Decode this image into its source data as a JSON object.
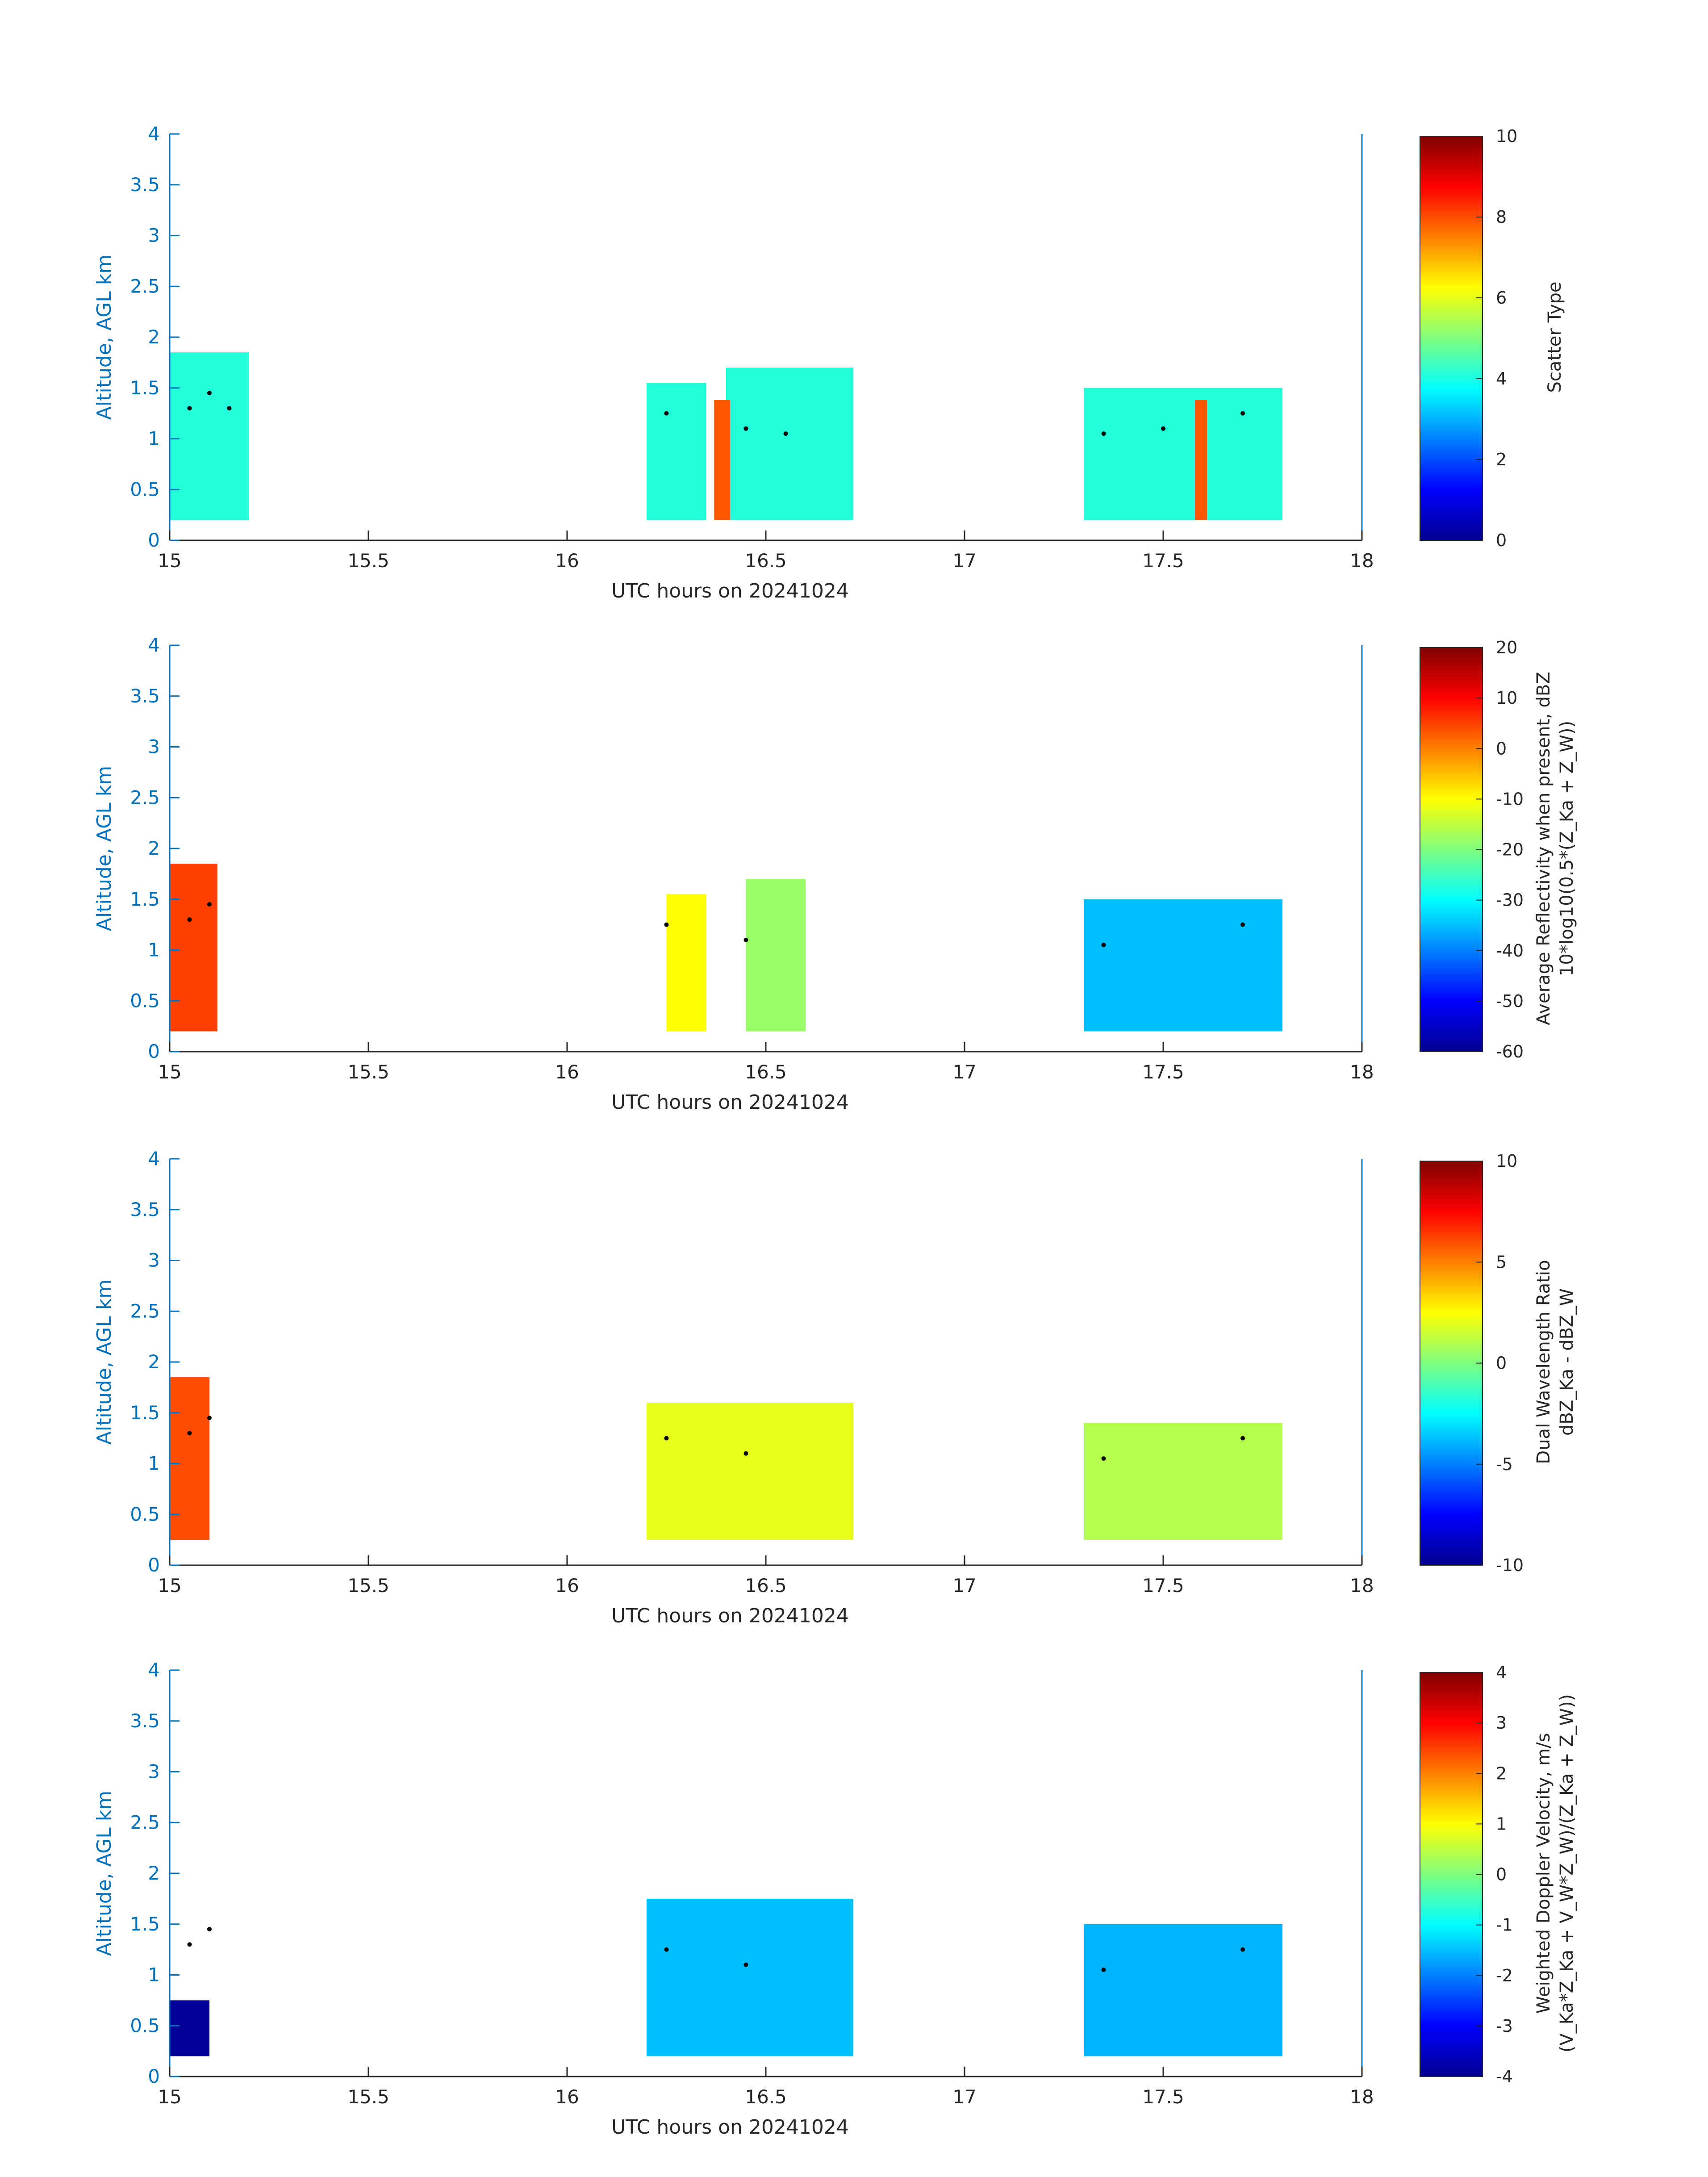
{
  "chart_data": [
    {
      "type": "heatmap",
      "xlabel": "UTC hours on 20241024",
      "ylabel": "Altitude, AGL km",
      "xlim": [
        15,
        18
      ],
      "ylim": [
        0,
        4
      ],
      "xticks": [
        "15",
        "15.5",
        "16",
        "16.5",
        "17",
        "17.5",
        "18"
      ],
      "yticks": [
        "0",
        "0.5",
        "1",
        "1.5",
        "2",
        "2.5",
        "3",
        "3.5",
        "4"
      ],
      "colorbar": {
        "label": "Scatter Type",
        "label2": "",
        "range": [
          0,
          10
        ],
        "ticks": [
          "0",
          "2",
          "4",
          "6",
          "8",
          "10"
        ]
      },
      "colormap": "jet",
      "regions": [
        {
          "x0": 15.0,
          "x1": 15.2,
          "y0": 0.2,
          "y1": 1.85,
          "value": 4.1
        },
        {
          "x0": 16.2,
          "x1": 16.35,
          "y0": 0.2,
          "y1": 1.55,
          "value": 4.1
        },
        {
          "x0": 16.4,
          "x1": 16.72,
          "y0": 0.2,
          "y1": 1.7,
          "value": 4.1
        },
        {
          "x0": 17.3,
          "x1": 17.8,
          "y0": 0.2,
          "y1": 1.5,
          "value": 4.1
        },
        {
          "x0": 16.37,
          "x1": 16.41,
          "y0": 0.2,
          "y1": 1.38,
          "value": 7.9
        },
        {
          "x0": 17.58,
          "x1": 17.61,
          "y0": 0.2,
          "y1": 1.38,
          "value": 7.9
        }
      ],
      "melting_layer_points": [
        [
          15.05,
          1.3
        ],
        [
          15.1,
          1.45
        ],
        [
          15.15,
          1.3
        ],
        [
          16.25,
          1.25
        ],
        [
          16.45,
          1.1
        ],
        [
          16.55,
          1.05
        ],
        [
          17.35,
          1.05
        ],
        [
          17.5,
          1.1
        ],
        [
          17.7,
          1.25
        ]
      ]
    },
    {
      "type": "heatmap",
      "xlabel": "UTC hours on 20241024",
      "ylabel": "Altitude, AGL km",
      "xlim": [
        15,
        18
      ],
      "ylim": [
        0,
        4
      ],
      "xticks": [
        "15",
        "15.5",
        "16",
        "16.5",
        "17",
        "17.5",
        "18"
      ],
      "yticks": [
        "0",
        "0.5",
        "1",
        "1.5",
        "2",
        "2.5",
        "3",
        "3.5",
        "4"
      ],
      "colorbar": {
        "label": "Average Reflectivity when present, dBZ",
        "label2": "10*log10(0.5*(Z_Ka + Z_W))",
        "range": [
          -60,
          20
        ],
        "ticks": [
          "-60",
          "-50",
          "-40",
          "-30",
          "-20",
          "-10",
          "0",
          "10",
          "20"
        ]
      },
      "colormap": "jet",
      "regions": [
        {
          "x0": 15.0,
          "x1": 15.12,
          "y0": 0.2,
          "y1": 1.85,
          "value": 5
        },
        {
          "x0": 16.25,
          "x1": 16.35,
          "y0": 0.2,
          "y1": 1.55,
          "value": -10
        },
        {
          "x0": 16.45,
          "x1": 16.6,
          "y0": 0.2,
          "y1": 1.7,
          "value": -18
        },
        {
          "x0": 17.3,
          "x1": 17.8,
          "y0": 0.2,
          "y1": 1.5,
          "value": -35
        }
      ],
      "melting_layer_points": [
        [
          15.05,
          1.3
        ],
        [
          15.1,
          1.45
        ],
        [
          16.25,
          1.25
        ],
        [
          16.45,
          1.1
        ],
        [
          17.35,
          1.05
        ],
        [
          17.7,
          1.25
        ]
      ]
    },
    {
      "type": "heatmap",
      "xlabel": "UTC hours on 20241024",
      "ylabel": "Altitude, AGL km",
      "xlim": [
        15,
        18
      ],
      "ylim": [
        0,
        4
      ],
      "xticks": [
        "15",
        "15.5",
        "16",
        "16.5",
        "17",
        "17.5",
        "18"
      ],
      "yticks": [
        "0",
        "0.5",
        "1",
        "1.5",
        "2",
        "2.5",
        "3",
        "3.5",
        "4"
      ],
      "colorbar": {
        "label": "Dual Wavelength Ratio",
        "label2": "dBZ_Ka - dBZ_W",
        "range": [
          -10,
          10
        ],
        "ticks": [
          "-10",
          "-5",
          "0",
          "5",
          "10"
        ]
      },
      "colormap": "jet",
      "regions": [
        {
          "x0": 15.0,
          "x1": 15.1,
          "y0": 0.25,
          "y1": 1.85,
          "value": 6
        },
        {
          "x0": 16.2,
          "x1": 16.72,
          "y0": 0.25,
          "y1": 1.6,
          "value": 2
        },
        {
          "x0": 17.3,
          "x1": 17.8,
          "y0": 0.25,
          "y1": 1.4,
          "value": 1
        }
      ],
      "melting_layer_points": [
        [
          15.05,
          1.3
        ],
        [
          15.1,
          1.45
        ],
        [
          16.25,
          1.25
        ],
        [
          16.45,
          1.1
        ],
        [
          17.35,
          1.05
        ],
        [
          17.7,
          1.25
        ]
      ]
    },
    {
      "type": "heatmap",
      "xlabel": "UTC hours on 20241024",
      "ylabel": "Altitude, AGL km",
      "xlim": [
        15,
        18
      ],
      "ylim": [
        0,
        4
      ],
      "xticks": [
        "15",
        "15.5",
        "16",
        "16.5",
        "17",
        "17.5",
        "18"
      ],
      "yticks": [
        "0",
        "0.5",
        "1",
        "1.5",
        "2",
        "2.5",
        "3",
        "3.5",
        "4"
      ],
      "colorbar": {
        "label": "Weighted Doppler Velocity, m/s",
        "label2": "(V_Ka*Z_Ka + V_W*Z_W)/(Z_Ka + Z_W))",
        "range": [
          -4,
          4
        ],
        "ticks": [
          "-4",
          "-3",
          "-2",
          "-1",
          "0",
          "1",
          "2",
          "3",
          "4"
        ]
      },
      "colormap": "jet",
      "regions": [
        {
          "x0": 15.0,
          "x1": 15.1,
          "y0": 0.2,
          "y1": 0.75,
          "value": -3.8
        },
        {
          "x0": 16.2,
          "x1": 16.72,
          "y0": 0.2,
          "y1": 1.75,
          "value": -1.5
        },
        {
          "x0": 17.3,
          "x1": 17.8,
          "y0": 0.2,
          "y1": 1.5,
          "value": -1.6
        }
      ],
      "melting_layer_points": [
        [
          15.05,
          1.3
        ],
        [
          15.1,
          1.45
        ],
        [
          16.25,
          1.25
        ],
        [
          16.45,
          1.1
        ],
        [
          17.35,
          1.05
        ],
        [
          17.7,
          1.25
        ]
      ]
    }
  ]
}
